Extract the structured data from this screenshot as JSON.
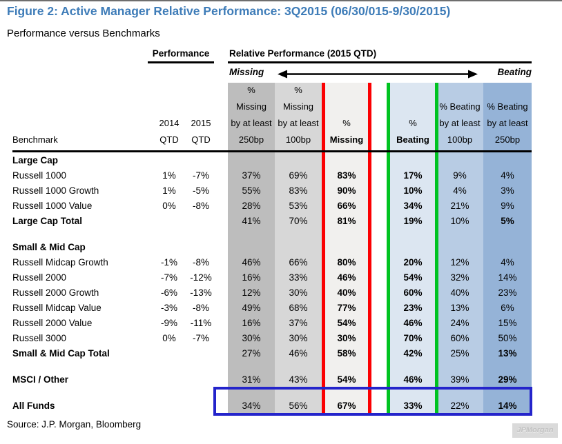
{
  "title": "Figure 2: Active Manager Relative Performance: 3Q2015 (06/30/015-9/30/2015)",
  "subtitle": "Performance versus Benchmarks",
  "header": {
    "performance_group": "Performance",
    "relative_group": "Relative Performance (2015 QTD)",
    "missing_label": "Missing",
    "beating_label": "Beating",
    "benchmark_col": "Benchmark",
    "perf_cols": [
      {
        "lines": [
          "2014",
          "QTD"
        ],
        "bold_lines": []
      },
      {
        "lines": [
          "2015",
          "QTD"
        ],
        "bold_lines": []
      }
    ],
    "relative_cols": [
      {
        "lines": [
          "%",
          "Missing",
          "by at least",
          "250bp"
        ],
        "bold_lines": []
      },
      {
        "lines": [
          "%",
          "Missing",
          "by at least",
          "100bp"
        ],
        "bold_lines": []
      },
      {
        "lines": [
          "%",
          "Missing"
        ],
        "bold_lines": [
          1
        ]
      },
      {
        "lines": [
          "%",
          "Beating"
        ],
        "bold_lines": [
          1
        ]
      },
      {
        "lines": [
          "% Beating",
          "by at least",
          "100bp"
        ],
        "bold_lines": []
      },
      {
        "lines": [
          "% Beating",
          "by at least",
          "250bp"
        ],
        "bold_lines": []
      }
    ]
  },
  "source": "Source: J.P. Morgan, Bloomberg",
  "watermark": "JPMorgan",
  "colors": {
    "title_blue": "#3e7cb8",
    "band_miss_250": "#bdbdbd",
    "band_miss_100": "#d7d7d7",
    "band_missing": "#f1f0ee",
    "band_beating": "#dce6f1",
    "band_beat_100": "#b8cce4",
    "band_beat_250": "#95b3d7",
    "divider_red": "#fb0002",
    "divider_green": "#00c321",
    "highlight_blue": "#2424cb"
  },
  "chart_data": {
    "type": "table",
    "title": "Active Manager Relative Performance: 3Q2015 (06/30/015-9/30/2015)",
    "columns": [
      "Benchmark",
      "2014 QTD",
      "2015 QTD",
      "% Missing by at least 250bp",
      "% Missing by at least 100bp",
      "% Missing",
      "% Beating",
      "% Beating by at least 100bp",
      "% Beating by at least 250bp"
    ],
    "rows": [
      {
        "label": "Large Cap",
        "style": "section",
        "spacer_before": false,
        "highlight": false,
        "values": [
          "",
          "",
          "",
          "",
          "",
          "",
          "",
          ""
        ]
      },
      {
        "label": "Russell 1000",
        "style": "row",
        "spacer_before": false,
        "highlight": false,
        "values": [
          "1%",
          "-7%",
          "37%",
          "69%",
          "83%",
          "17%",
          "9%",
          "4%"
        ]
      },
      {
        "label": "Russell 1000 Growth",
        "style": "row",
        "spacer_before": false,
        "highlight": false,
        "values": [
          "1%",
          "-5%",
          "55%",
          "83%",
          "90%",
          "10%",
          "4%",
          "3%"
        ]
      },
      {
        "label": "Russell 1000 Value",
        "style": "row",
        "spacer_before": false,
        "highlight": false,
        "values": [
          "0%",
          "-8%",
          "28%",
          "53%",
          "66%",
          "34%",
          "21%",
          "9%"
        ]
      },
      {
        "label": "Large Cap Total",
        "style": "total",
        "spacer_before": false,
        "highlight": false,
        "values": [
          "",
          "",
          "41%",
          "70%",
          "81%",
          "19%",
          "10%",
          "5%"
        ]
      },
      {
        "label": "Small & Mid Cap",
        "style": "section",
        "spacer_before": true,
        "highlight": false,
        "values": [
          "",
          "",
          "",
          "",
          "",
          "",
          "",
          ""
        ]
      },
      {
        "label": "Russell Midcap Growth",
        "style": "row",
        "spacer_before": false,
        "highlight": false,
        "values": [
          "-1%",
          "-8%",
          "46%",
          "66%",
          "80%",
          "20%",
          "12%",
          "4%"
        ]
      },
      {
        "label": "Russell 2000",
        "style": "row",
        "spacer_before": false,
        "highlight": false,
        "values": [
          "-7%",
          "-12%",
          "16%",
          "33%",
          "46%",
          "54%",
          "32%",
          "14%"
        ]
      },
      {
        "label": "Russell 2000 Growth",
        "style": "row",
        "spacer_before": false,
        "highlight": false,
        "values": [
          "-6%",
          "-13%",
          "12%",
          "30%",
          "40%",
          "60%",
          "40%",
          "23%"
        ]
      },
      {
        "label": "Russell Midcap Value",
        "style": "row",
        "spacer_before": false,
        "highlight": false,
        "values": [
          "-3%",
          "-8%",
          "49%",
          "68%",
          "77%",
          "23%",
          "13%",
          "6%"
        ]
      },
      {
        "label": "Russell 2000 Value",
        "style": "row",
        "spacer_before": false,
        "highlight": false,
        "values": [
          "-9%",
          "-11%",
          "16%",
          "37%",
          "54%",
          "46%",
          "24%",
          "15%"
        ]
      },
      {
        "label": "Russell 3000",
        "style": "row",
        "spacer_before": false,
        "highlight": false,
        "values": [
          "0%",
          "-7%",
          "30%",
          "30%",
          "30%",
          "70%",
          "60%",
          "50%"
        ]
      },
      {
        "label": "Small & Mid Cap Total",
        "style": "total",
        "spacer_before": false,
        "highlight": false,
        "values": [
          "",
          "",
          "27%",
          "46%",
          "58%",
          "42%",
          "25%",
          "13%"
        ]
      },
      {
        "label": "MSCI / Other",
        "style": "total",
        "spacer_before": true,
        "highlight": false,
        "values": [
          "",
          "",
          "31%",
          "43%",
          "54%",
          "46%",
          "39%",
          "29%"
        ]
      },
      {
        "label": "All Funds",
        "style": "total",
        "spacer_before": true,
        "highlight": true,
        "values": [
          "",
          "",
          "34%",
          "56%",
          "67%",
          "33%",
          "22%",
          "14%"
        ]
      }
    ]
  }
}
